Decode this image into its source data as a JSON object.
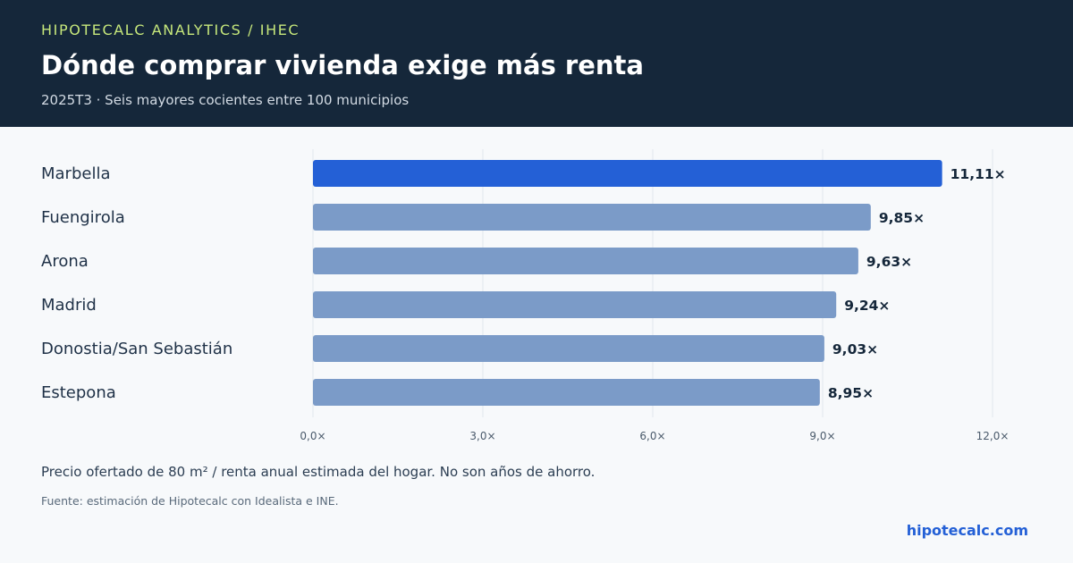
{
  "header": {
    "kicker": "HIPOTECALC ANALYTICS / IHEC",
    "title": "Dónde comprar vivienda exige más renta",
    "subtitle": "2025T3 · Seis mayores cocientes entre 100 municipios"
  },
  "chart_data": {
    "type": "bar",
    "orientation": "horizontal",
    "categories": [
      "Marbella",
      "Fuengirola",
      "Arona",
      "Madrid",
      "Donostia/San Sebastián",
      "Estepona"
    ],
    "values": [
      11.11,
      9.85,
      9.63,
      9.24,
      9.03,
      8.95
    ],
    "value_labels": [
      "11,11×",
      "9,85×",
      "9,63×",
      "9,24×",
      "9,03×",
      "8,95×"
    ],
    "xlim": [
      0,
      12
    ],
    "x_ticks": [
      0,
      3,
      6,
      9,
      12
    ],
    "x_tick_labels": [
      "0,0×",
      "3,0×",
      "6,0×",
      "9,0×",
      "12,0×"
    ],
    "grid": true,
    "highlight_index": 0,
    "colors": {
      "highlight": "#2460d6",
      "bar": "#7b9bc8",
      "grid": "#e1e7ee",
      "label": "#1f3147",
      "value_label": "#15273a",
      "tick": "#4a5a6b"
    }
  },
  "footer": {
    "note": "Precio ofertado de 80 m² / renta anual estimada del hogar. No son años de ahorro.",
    "source": "Fuente: estimación de Hipotecalc con Idealista e INE.",
    "brand": "hipotecalc.com"
  }
}
